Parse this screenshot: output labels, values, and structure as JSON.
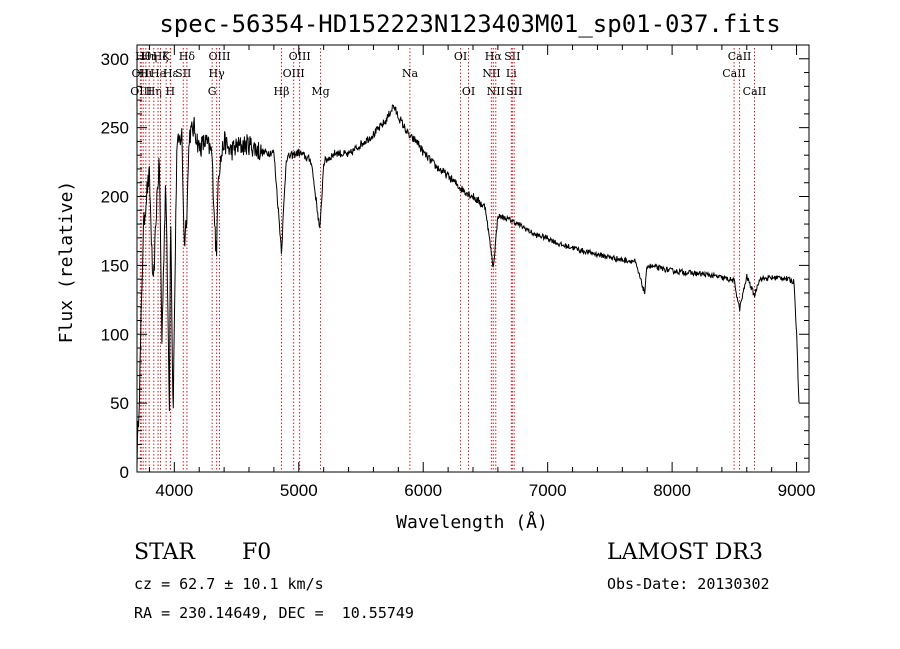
{
  "chart_data": {
    "type": "line",
    "title": "spec-56354-HD152223N123403M01_sp01-037.fits",
    "xlabel": "Wavelength (Å)",
    "ylabel": "Flux (relative)",
    "xlim": [
      3700,
      9100
    ],
    "ylim": [
      0,
      310
    ],
    "x_ticks": [
      4000,
      5000,
      6000,
      7000,
      8000,
      9000
    ],
    "y_ticks": [
      0,
      50,
      100,
      150,
      200,
      250,
      300
    ],
    "grid": false,
    "line_color": "#000000",
    "marker_color": "#cc2222",
    "series": [
      {
        "name": "flux",
        "x": [
          3700,
          3720,
          3750,
          3780,
          3800,
          3830,
          3860,
          3880,
          3900,
          3930,
          3960,
          3970,
          3990,
          4020,
          4060,
          4080,
          4101,
          4120,
          4160,
          4200,
          4250,
          4300,
          4330,
          4340,
          4350,
          4400,
          4450,
          4500,
          4600,
          4700,
          4800,
          4861,
          4900,
          5000,
          5100,
          5170,
          5200,
          5300,
          5400,
          5500,
          5600,
          5700,
          5760,
          5800,
          5850,
          5893,
          5950,
          6000,
          6100,
          6200,
          6300,
          6400,
          6500,
          6563,
          6600,
          6700,
          6800,
          6900,
          7000,
          7100,
          7200,
          7300,
          7400,
          7500,
          7600,
          7700,
          7780,
          7800,
          7900,
          8000,
          8100,
          8200,
          8300,
          8400,
          8498,
          8542,
          8600,
          8662,
          8700,
          8800,
          8900,
          8980,
          9000,
          9020
        ],
        "values": [
          10,
          60,
          175,
          205,
          215,
          130,
          200,
          225,
          95,
          215,
          50,
          200,
          40,
          235,
          245,
          165,
          190,
          245,
          250,
          235,
          240,
          232,
          170,
          155,
          215,
          240,
          233,
          236,
          238,
          232,
          232,
          160,
          228,
          232,
          226,
          175,
          225,
          232,
          230,
          238,
          245,
          255,
          266,
          258,
          250,
          243,
          240,
          232,
          222,
          215,
          206,
          200,
          192,
          148,
          186,
          183,
          178,
          172,
          170,
          165,
          163,
          160,
          158,
          156,
          154,
          153,
          130,
          150,
          148,
          146,
          145,
          144,
          143,
          141,
          139,
          118,
          142,
          128,
          140,
          141,
          141,
          138,
          100,
          50
        ]
      }
    ],
    "line_markers": [
      {
        "wavelength": 3727,
        "row": 1,
        "label": "OII"
      },
      {
        "wavelength": 3734,
        "row": 2,
        "label": "OIII"
      },
      {
        "wavelength": 3750,
        "row": 0,
        "label": "Hθ"
      },
      {
        "wavelength": 3771,
        "row": 1,
        "label": "Hι"
      },
      {
        "wavelength": 3798,
        "row": 0,
        "label": "Hη"
      },
      {
        "wavelength": 3835,
        "row": 2,
        "label": "Hη"
      },
      {
        "wavelength": 3869,
        "row": 1,
        "label": "He"
      },
      {
        "wavelength": 3889,
        "row": 0,
        "label": "Hζ"
      },
      {
        "wavelength": 3934,
        "row": 0,
        "label": "K"
      },
      {
        "wavelength": 3968,
        "row": 2,
        "label": "H"
      },
      {
        "wavelength": 3970,
        "row": 1,
        "label": "Hε"
      },
      {
        "wavelength": 4072,
        "row": 1,
        "label": "SII"
      },
      {
        "wavelength": 4101,
        "row": 0,
        "label": "Hδ"
      },
      {
        "wavelength": 4304,
        "row": 2,
        "label": "G"
      },
      {
        "wavelength": 4340,
        "row": 1,
        "label": "Hγ"
      },
      {
        "wavelength": 4363,
        "row": 0,
        "label": "OIII"
      },
      {
        "wavelength": 4861,
        "row": 2,
        "label": "Hβ"
      },
      {
        "wavelength": 4959,
        "row": 1,
        "label": "OIII"
      },
      {
        "wavelength": 5007,
        "row": 0,
        "label": "OIII"
      },
      {
        "wavelength": 5175,
        "row": 2,
        "label": "Mg"
      },
      {
        "wavelength": 5893,
        "row": 1,
        "label": "Na"
      },
      {
        "wavelength": 6300,
        "row": 0,
        "label": "OI"
      },
      {
        "wavelength": 6364,
        "row": 2,
        "label": "OI"
      },
      {
        "wavelength": 6548,
        "row": 1,
        "label": "NII"
      },
      {
        "wavelength": 6563,
        "row": 0,
        "label": "Hα"
      },
      {
        "wavelength": 6583,
        "row": 2,
        "label": "NII"
      },
      {
        "wavelength": 6708,
        "row": 1,
        "label": "Li"
      },
      {
        "wavelength": 6716,
        "row": 0,
        "label": "SII"
      },
      {
        "wavelength": 6731,
        "row": 2,
        "label": "SII"
      },
      {
        "wavelength": 8498,
        "row": 1,
        "label": "CaII"
      },
      {
        "wavelength": 8542,
        "row": 0,
        "label": "CaII"
      },
      {
        "wavelength": 8662,
        "row": 2,
        "label": "CaII"
      }
    ]
  },
  "info": {
    "object_class": "STAR",
    "subclass": "F0",
    "velocity": "cz = 62.7 ± 10.1 km/s",
    "coordinates": "RA = 230.14649, DEC =  10.55749",
    "survey": "LAMOST DR3",
    "obs_date": "Obs-Date: 20130302"
  }
}
